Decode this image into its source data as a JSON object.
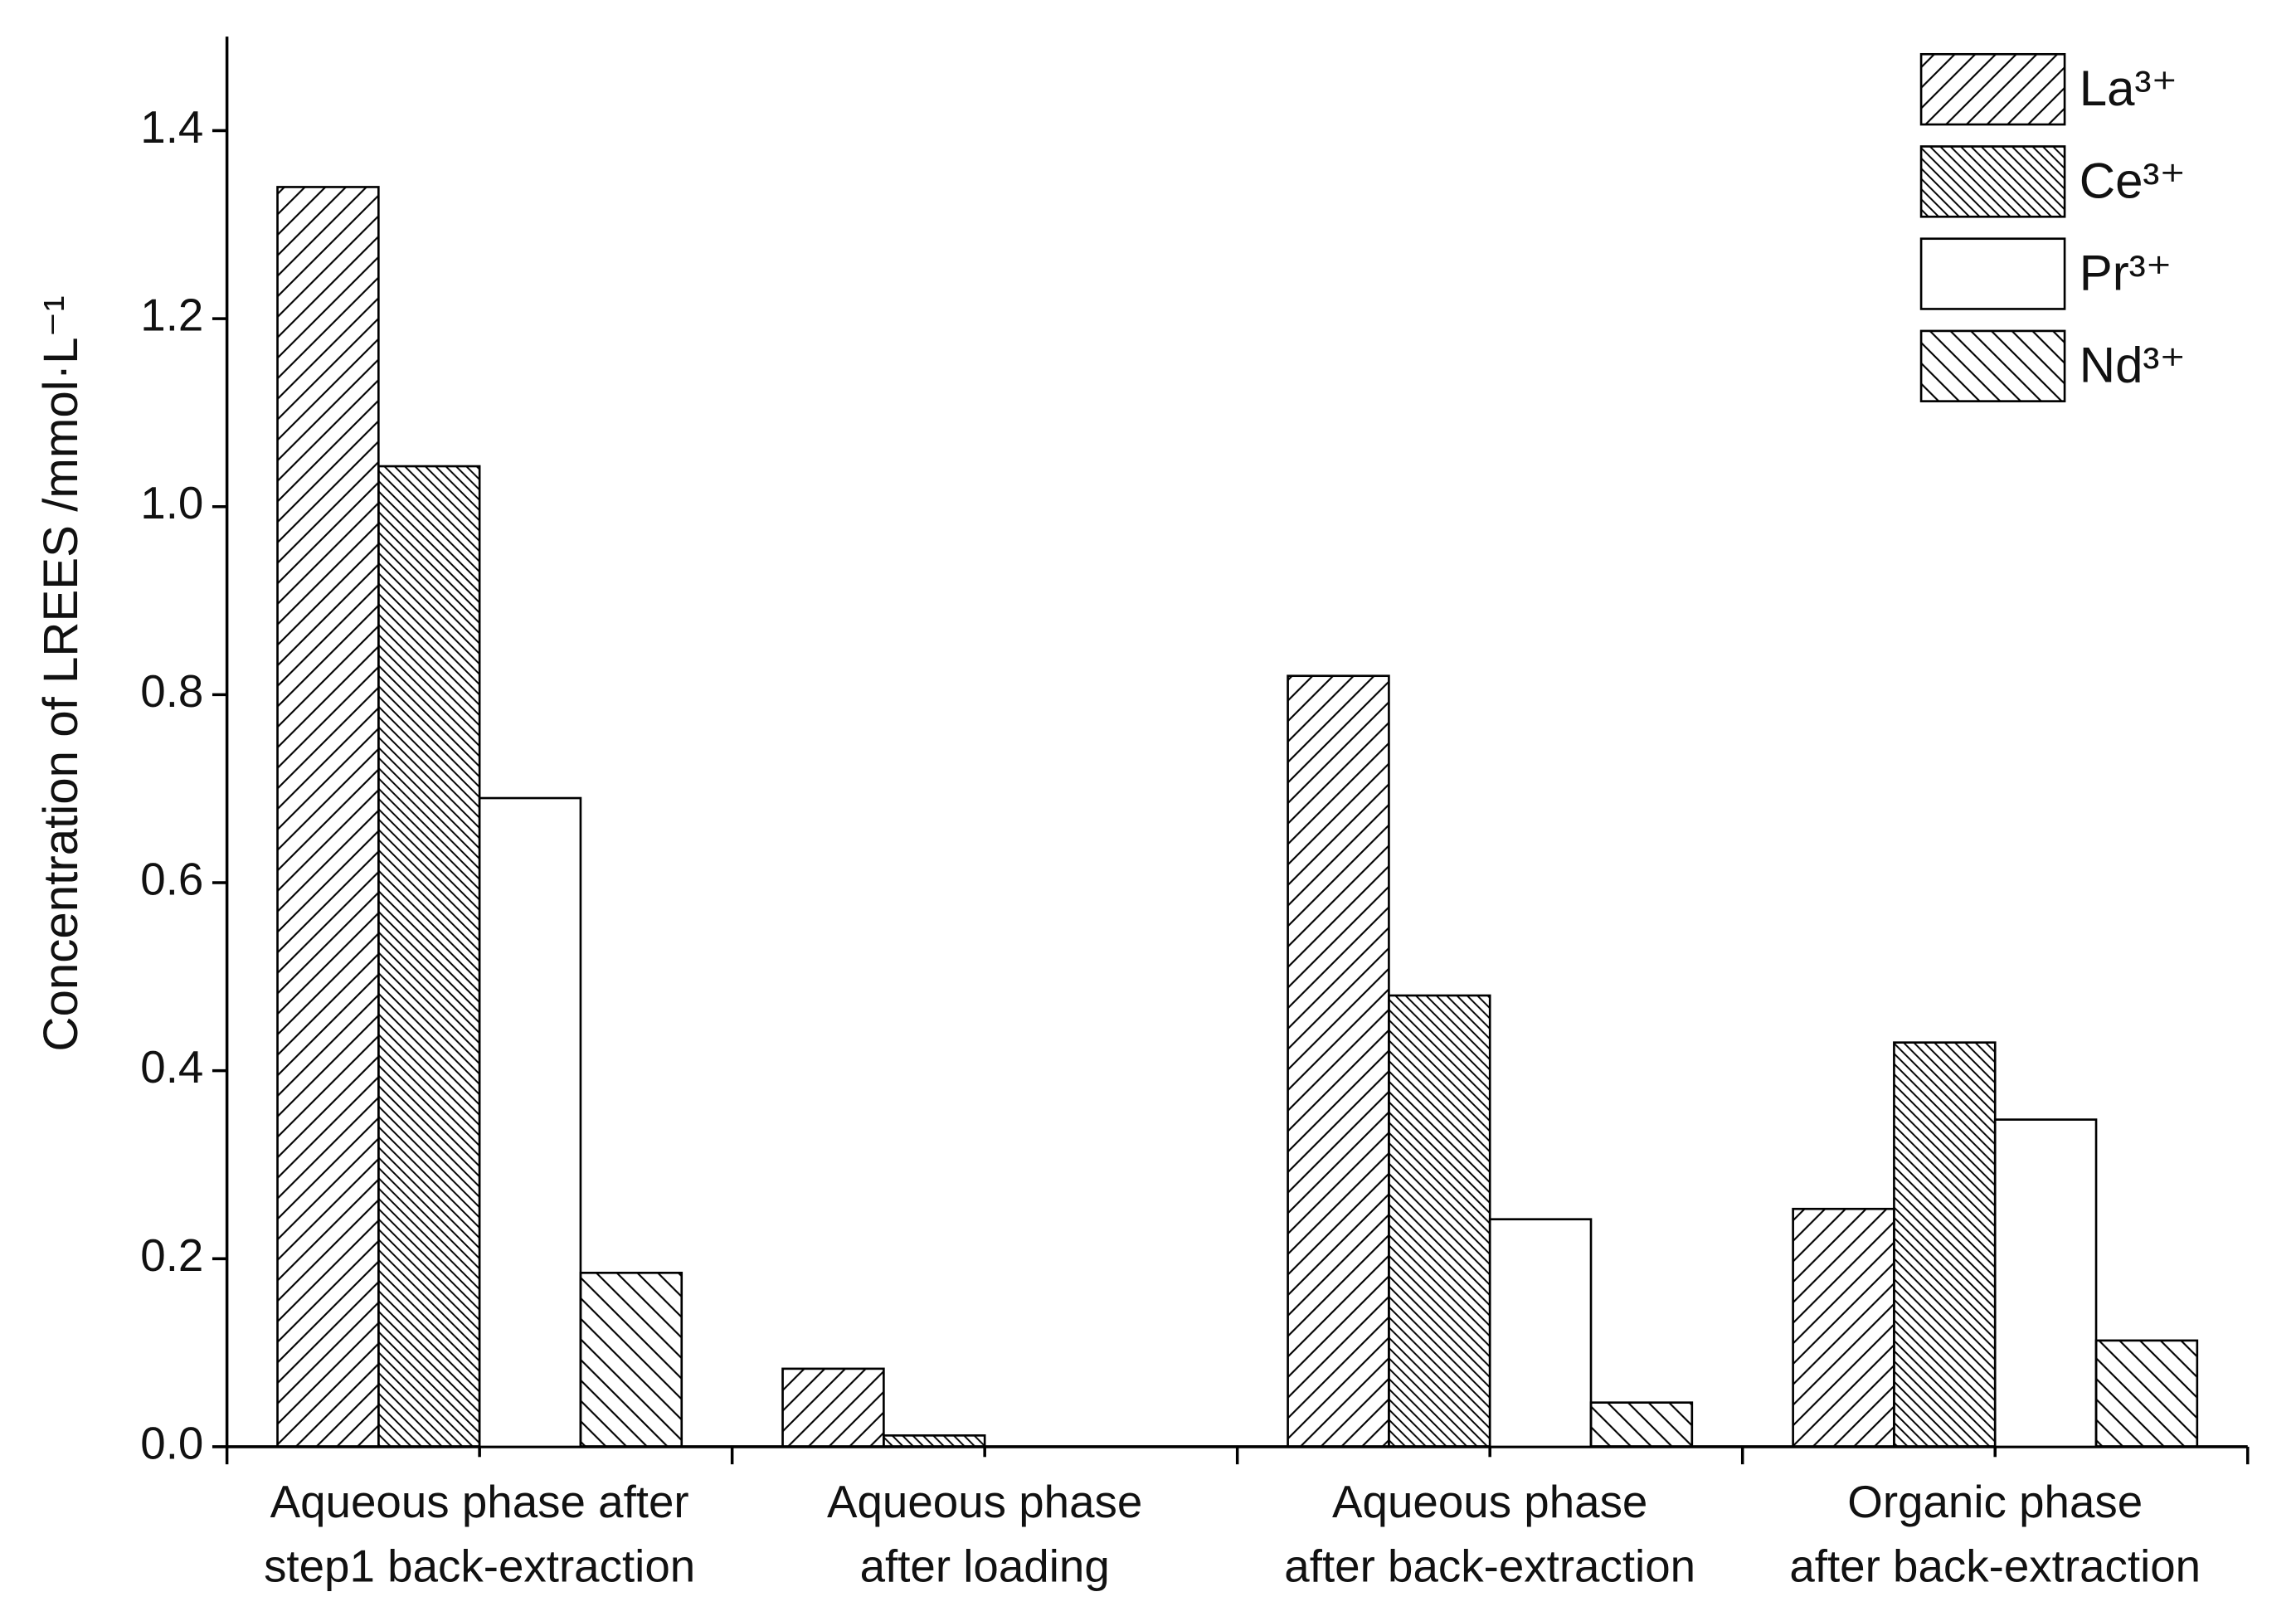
{
  "chart_data": {
    "type": "bar",
    "ylabel": "Concentration of LREES /mmol·L⁻¹",
    "categories": [
      [
        "Aqueous phase after",
        "step1 back-extraction"
      ],
      [
        "Aqueous phase",
        "after loading"
      ],
      [
        "Aqueous phase",
        "after back-extraction"
      ],
      [
        "Organic phase",
        "after back-extraction"
      ]
    ],
    "series": [
      {
        "name": "La³⁺",
        "color": "#000000",
        "hatch": "/",
        "values": [
          1.34,
          0.083,
          0.82,
          0.253
        ]
      },
      {
        "name": "Ce³⁺",
        "color": "#000000",
        "hatch": "\\\\",
        "values": [
          1.043,
          0.012,
          0.48,
          0.43
        ]
      },
      {
        "name": "Pr³⁺",
        "color": "#000000",
        "hatch": "none",
        "values": [
          0.69,
          0,
          0.242,
          0.348
        ]
      },
      {
        "name": "Nd³⁺",
        "color": "#000000",
        "hatch": "\\",
        "values": [
          0.185,
          0,
          0.047,
          0.113
        ]
      }
    ],
    "ylim": [
      0,
      1.5
    ],
    "yticks": [
      {
        "value": 0,
        "label": "0.0"
      },
      0.2,
      0.4,
      0.6,
      0.8,
      {
        "value": 1,
        "label": "1.0"
      },
      1.2,
      1.4
    ],
    "legend": "upper right"
  }
}
